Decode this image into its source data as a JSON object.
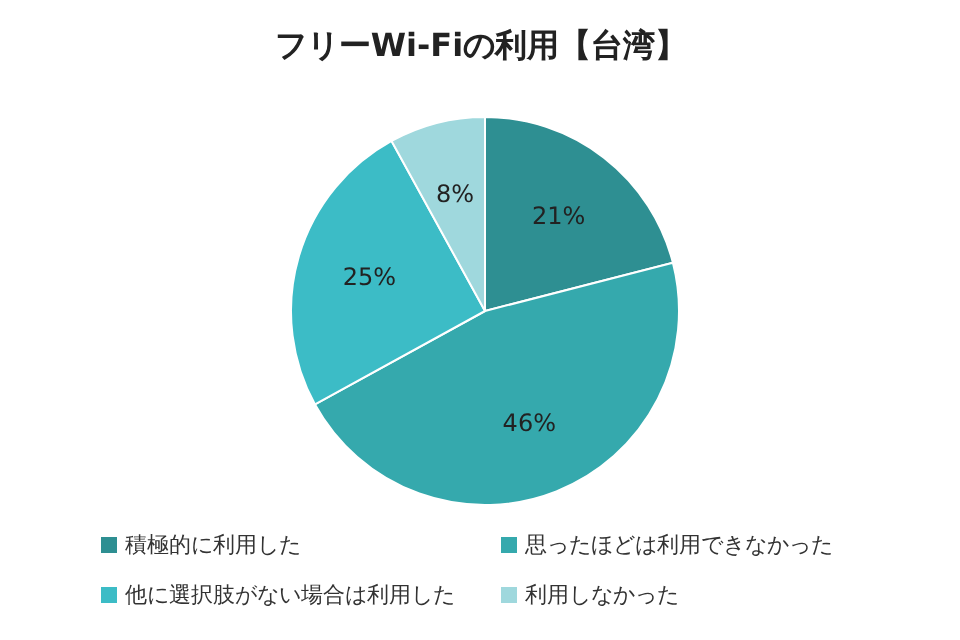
{
  "chart_data": {
    "type": "pie",
    "title": "フリーWi-Fiの利用【台湾】",
    "categories": [
      "積極的に利用した",
      "思ったほどは利用できなかった",
      "他に選択肢がない場合は利用した",
      "利用しなかった"
    ],
    "values": [
      21,
      46,
      25,
      8
    ],
    "colors": [
      "#2e8f92",
      "#35a9ad",
      "#3cbcc6",
      "#9fd8dd"
    ],
    "value_labels": [
      "21%",
      "46%",
      "25%",
      "8%"
    ],
    "legend": "bottom"
  }
}
